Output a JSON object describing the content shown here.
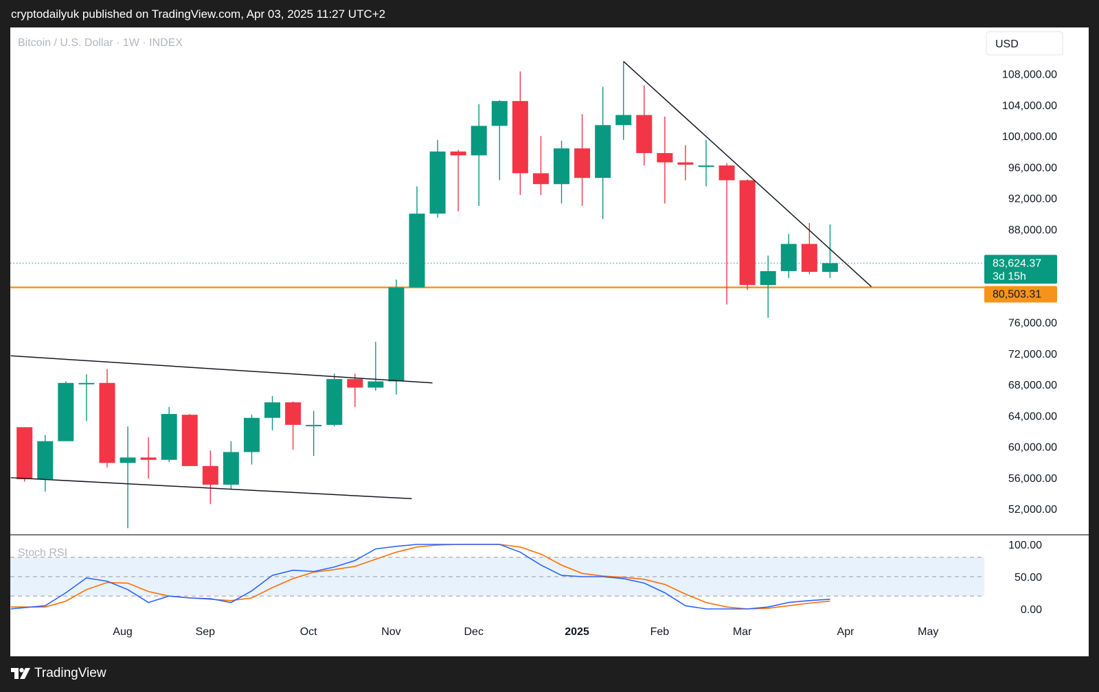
{
  "header": {
    "published": "cryptodailyuk published on TradingView.com, Apr 03, 2025 11:27 UTC+2"
  },
  "footer": {
    "brand": "TradingView",
    "logo_icon": "tradingview-logo-icon"
  },
  "colors": {
    "up": "#089981",
    "down": "#f23645",
    "support": "#f7931a",
    "rsi_k": "#2962ff",
    "rsi_d": "#ff6d00",
    "rsi_band": "#e8f2fd"
  },
  "chart_data": {
    "type": "candlestick",
    "symbol": "Bitcoin / U.S. Dollar · 1W · INDEX",
    "currency": "USD",
    "ylim": [
      49000,
      113000
    ],
    "y_ticks": [
      "108,000.00",
      "104,000.00",
      "100,000.00",
      "96,000.00",
      "92,000.00",
      "88,000.00",
      "76,000.00",
      "72,000.00",
      "68,000.00",
      "64,000.00",
      "60,000.00",
      "56,000.00",
      "52,000.00"
    ],
    "x_labels": [
      {
        "label": "Aug",
        "week": 4.75
      },
      {
        "label": "Sep",
        "week": 8.75
      },
      {
        "label": "Oct",
        "week": 13.75
      },
      {
        "label": "Nov",
        "week": 17.75
      },
      {
        "label": "Dec",
        "week": 21.75
      },
      {
        "label": "2025",
        "week": 26.75,
        "bold": true
      },
      {
        "label": "Feb",
        "week": 30.75
      },
      {
        "label": "Mar",
        "week": 34.75
      },
      {
        "label": "Apr",
        "week": 39.75
      },
      {
        "label": "May",
        "week": 43.75
      }
    ],
    "candles": [
      {
        "o": 62500,
        "h": 62500,
        "l": 55500,
        "c": 55800
      },
      {
        "o": 55800,
        "h": 61500,
        "l": 54200,
        "c": 60700
      },
      {
        "o": 60700,
        "h": 68400,
        "l": 60700,
        "c": 68200
      },
      {
        "o": 68200,
        "h": 69300,
        "l": 63300,
        "c": 68200
      },
      {
        "o": 68200,
        "h": 70000,
        "l": 57300,
        "c": 57900
      },
      {
        "o": 57900,
        "h": 62600,
        "l": 49500,
        "c": 58600
      },
      {
        "o": 58600,
        "h": 61200,
        "l": 55900,
        "c": 58300
      },
      {
        "o": 58300,
        "h": 65100,
        "l": 58000,
        "c": 64200
      },
      {
        "o": 64100,
        "h": 64200,
        "l": 57500,
        "c": 57500
      },
      {
        "o": 57500,
        "h": 59500,
        "l": 52600,
        "c": 55100
      },
      {
        "o": 55100,
        "h": 60700,
        "l": 54500,
        "c": 59300
      },
      {
        "o": 59300,
        "h": 64100,
        "l": 57700,
        "c": 63700
      },
      {
        "o": 63700,
        "h": 66500,
        "l": 62100,
        "c": 65700
      },
      {
        "o": 65700,
        "h": 65800,
        "l": 59600,
        "c": 62800
      },
      {
        "o": 62800,
        "h": 64600,
        "l": 58800,
        "c": 62800
      },
      {
        "o": 62800,
        "h": 69400,
        "l": 62600,
        "c": 68700
      },
      {
        "o": 68700,
        "h": 69400,
        "l": 65100,
        "c": 67600
      },
      {
        "o": 67600,
        "h": 73500,
        "l": 67200,
        "c": 68400
      },
      {
        "o": 68400,
        "h": 81500,
        "l": 66700,
        "c": 80500
      },
      {
        "o": 80500,
        "h": 93500,
        "l": 80500,
        "c": 90000
      },
      {
        "o": 90000,
        "h": 99500,
        "l": 89500,
        "c": 98000
      },
      {
        "o": 98000,
        "h": 98200,
        "l": 90300,
        "c": 97500
      },
      {
        "o": 97500,
        "h": 104100,
        "l": 91000,
        "c": 101300
      },
      {
        "o": 101300,
        "h": 104600,
        "l": 94300,
        "c": 104500
      },
      {
        "o": 104500,
        "h": 108300,
        "l": 92400,
        "c": 95200
      },
      {
        "o": 95200,
        "h": 100000,
        "l": 92400,
        "c": 93800
      },
      {
        "o": 93800,
        "h": 99400,
        "l": 91300,
        "c": 98400
      },
      {
        "o": 98400,
        "h": 102800,
        "l": 91000,
        "c": 94600
      },
      {
        "o": 94600,
        "h": 106300,
        "l": 89300,
        "c": 101400
      },
      {
        "o": 101400,
        "h": 109600,
        "l": 99500,
        "c": 102700
      },
      {
        "o": 102700,
        "h": 106500,
        "l": 96200,
        "c": 97800
      },
      {
        "o": 97800,
        "h": 102500,
        "l": 91300,
        "c": 96600
      },
      {
        "o": 96600,
        "h": 98800,
        "l": 94300,
        "c": 96300
      },
      {
        "o": 96200,
        "h": 99500,
        "l": 93500,
        "c": 96200
      },
      {
        "o": 96200,
        "h": 96500,
        "l": 78300,
        "c": 94300
      },
      {
        "o": 94300,
        "h": 94400,
        "l": 80200,
        "c": 80800
      },
      {
        "o": 80800,
        "h": 84600,
        "l": 76600,
        "c": 82600
      },
      {
        "o": 82600,
        "h": 87400,
        "l": 81700,
        "c": 86100
      },
      {
        "o": 86100,
        "h": 88800,
        "l": 82200,
        "c": 82500
      },
      {
        "o": 82500,
        "h": 88600,
        "l": 81700,
        "c": 83624
      }
    ],
    "lines": [
      {
        "name": "descending-trendline",
        "w1": 29,
        "p1": 109600,
        "w2": 41,
        "p2": 80600
      },
      {
        "name": "channel-upper",
        "w1": 0,
        "p1": 71700,
        "w2": 19.75,
        "p2": 68200
      },
      {
        "name": "channel-lower",
        "w1": 0,
        "p1": 56000,
        "w2": 18.75,
        "p2": 53300
      }
    ],
    "support_level": {
      "value": 80503.31,
      "label": "80,503.31"
    },
    "last_price": {
      "value": 83624.37,
      "label": "83,624.37",
      "countdown": "3d 15h"
    },
    "stoch_rsi": {
      "title": "Stoch RSI",
      "ylim": [
        0,
        100
      ],
      "y_ticks": [
        "100.00",
        "50.00",
        "0.00"
      ],
      "bands": {
        "upper": 80,
        "middle": 50,
        "lower": 20
      },
      "k": [
        0,
        5,
        25,
        48,
        43,
        30,
        10,
        20,
        17,
        16,
        10,
        28,
        52,
        60,
        58,
        65,
        75,
        93,
        97,
        100,
        100,
        100,
        100,
        100,
        88,
        68,
        52,
        50,
        50,
        47,
        40,
        25,
        5,
        0,
        0,
        0,
        3,
        10,
        13,
        15
      ],
      "d": [
        3,
        3,
        12,
        30,
        41,
        40,
        27,
        20,
        17,
        15,
        13,
        17,
        33,
        47,
        57,
        61,
        66,
        77,
        88,
        96,
        99,
        100,
        100,
        100,
        96,
        85,
        68,
        55,
        51,
        49,
        46,
        38,
        23,
        10,
        3,
        0,
        1,
        5,
        9,
        12
      ]
    }
  }
}
